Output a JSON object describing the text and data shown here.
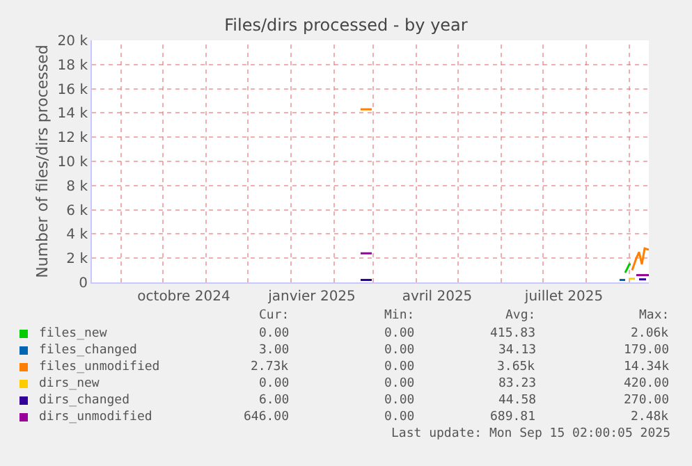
{
  "chart_data": {
    "type": "line",
    "title": "Files/dirs processed - by year",
    "ylabel": "Number of files/dirs processed",
    "xlim": [
      "2024-08-11",
      "2025-09-15"
    ],
    "ylim": [
      0,
      20000
    ],
    "yticks": [
      0,
      {
        "value": 2000,
        "label": "2 k"
      },
      {
        "value": 4000,
        "label": "4 k"
      },
      {
        "value": 6000,
        "label": "6 k"
      },
      {
        "value": 8000,
        "label": "8 k"
      },
      {
        "value": 10000,
        "label": "10 k"
      },
      {
        "value": 12000,
        "label": "12 k"
      },
      {
        "value": 14000,
        "label": "14 k"
      },
      {
        "value": 16000,
        "label": "16 k"
      },
      {
        "value": 18000,
        "label": "18 k"
      },
      {
        "value": 20000,
        "label": "20 k"
      }
    ],
    "xticks": [
      {
        "value": "2024-09-01",
        "label": null
      },
      {
        "value": "2024-10-01",
        "label": null
      },
      {
        "value": "2024-10-16",
        "label": "octobre 2024"
      },
      {
        "value": "2024-11-01",
        "label": null
      },
      {
        "value": "2024-12-01",
        "label": null
      },
      {
        "value": "2025-01-01",
        "label": null
      },
      {
        "value": "2025-01-16",
        "label": "janvier 2025"
      },
      {
        "value": "2025-02-01",
        "label": null
      },
      {
        "value": "2025-03-01",
        "label": null
      },
      {
        "value": "2025-04-01",
        "label": null
      },
      {
        "value": "2025-04-16",
        "label": "avril 2025"
      },
      {
        "value": "2025-05-01",
        "label": null
      },
      {
        "value": "2025-06-01",
        "label": null
      },
      {
        "value": "2025-07-01",
        "label": null
      },
      {
        "value": "2025-07-16",
        "label": "juillet 2025"
      },
      {
        "value": "2025-08-01",
        "label": null
      },
      {
        "value": "2025-09-01",
        "label": null
      }
    ],
    "grid": true,
    "legend": "bottom",
    "marker": "none",
    "line_style": "solid",
    "series": [
      {
        "name": "files_new",
        "color": "#00cc00",
        "x": [
          "2025-08-29",
          "2025-09-01",
          "2025-09-02"
        ],
        "values": [
          800,
          1500,
          1500
        ]
      },
      {
        "name": "files_changed",
        "color": "#0066b3",
        "x": [
          "2025-08-25",
          "2025-08-29"
        ],
        "values": [
          200,
          200
        ]
      },
      {
        "name": "files_unmodified",
        "color": "#ff8000",
        "x": [
          "2025-02-20",
          "2025-02-28",
          "2025-06-01",
          "2025-09-03",
          "2025-09-06",
          "2025-09-08",
          "2025-09-10",
          "2025-09-12",
          "2025-09-15"
        ],
        "values": [
          14300,
          14300,
          null,
          1000,
          2000,
          2500,
          1500,
          2800,
          2700
        ]
      },
      {
        "name": "dirs_new",
        "color": "#ffcc00",
        "x": [
          "2025-09-01",
          "2025-09-05"
        ],
        "values": [
          300,
          300
        ]
      },
      {
        "name": "dirs_changed",
        "color": "#330099",
        "x": [
          "2025-02-20",
          "2025-02-28",
          "2025-06-01",
          "2025-09-08",
          "2025-09-13"
        ],
        "values": [
          200,
          200,
          null,
          250,
          250
        ]
      },
      {
        "name": "dirs_unmodified",
        "color": "#990099",
        "x": [
          "2025-02-20",
          "2025-02-28",
          "2025-06-01",
          "2025-09-06",
          "2025-09-15"
        ],
        "values": [
          2400,
          2400,
          null,
          600,
          600
        ]
      }
    ],
    "annotations": [
      "Cur:",
      "Min:",
      "Avg:",
      "Max:",
      "0.00",
      "0.00",
      "415.83",
      "2.06k",
      "3.00",
      "0.00",
      "34.13",
      "179.00",
      "2.73k",
      "0.00",
      "3.65k",
      "14.34k",
      "0.00",
      "0.00",
      "83.23",
      "420.00",
      "6.00",
      "0.00",
      "44.58",
      "270.00",
      "646.00",
      "0.00",
      "689.81",
      "2.48k",
      "Last update: Mon Sep 15 02:00:05 2025"
    ]
  }
}
